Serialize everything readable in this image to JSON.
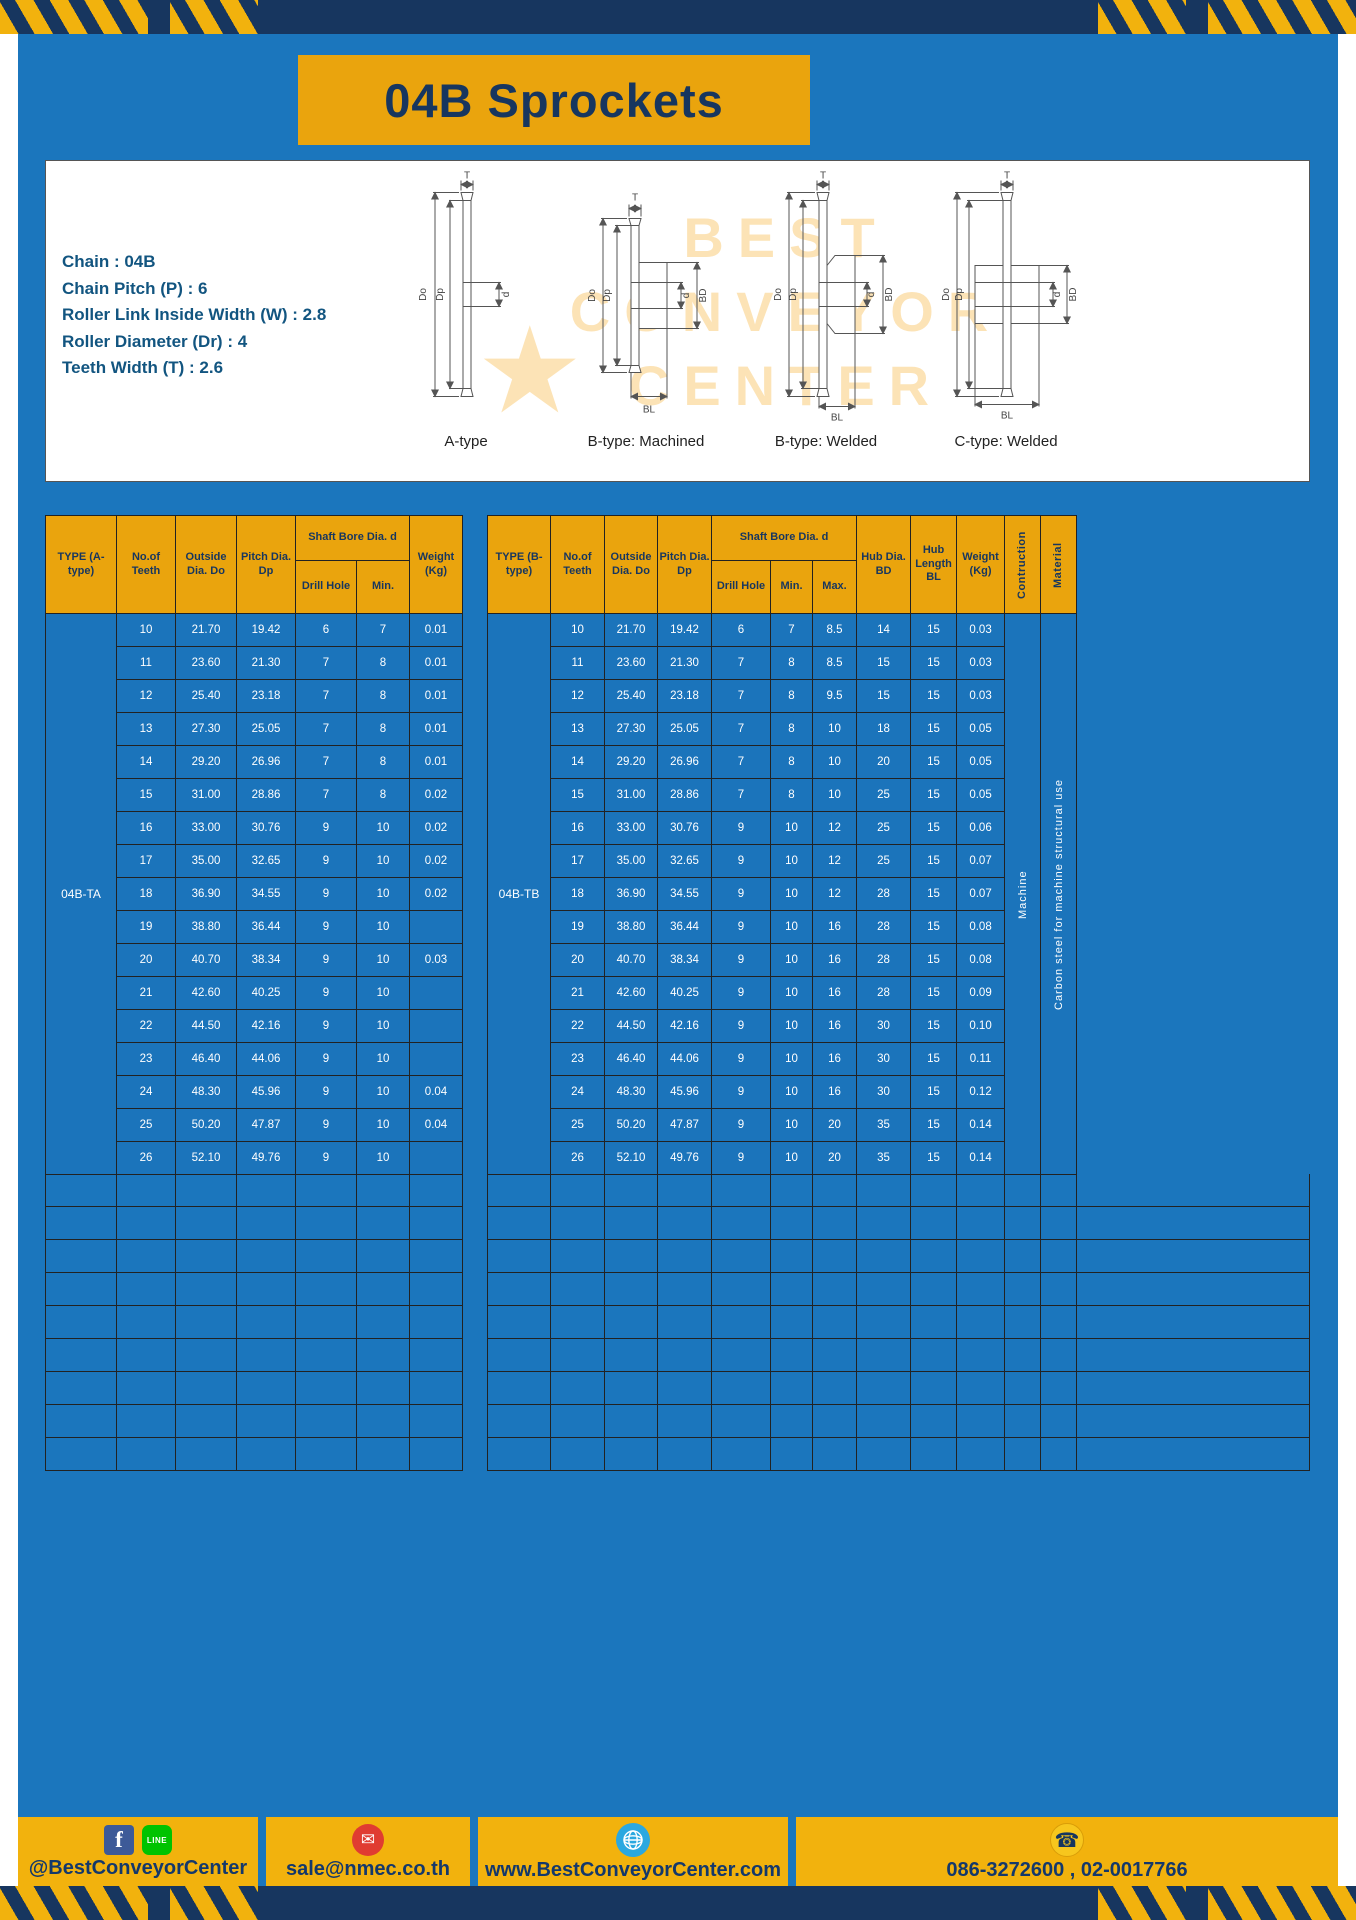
{
  "colors": {
    "page_blue": "#1b76bd",
    "navy": "#17365f",
    "accent_yellow": "#eaa40d",
    "footer_yellow": "#f2b20d"
  },
  "title": "04B Sprockets",
  "specs": {
    "lines": [
      "Chain : 04B",
      "Chain Pitch (P) : 6",
      "Roller Link Inside Width (W) : 2.8",
      "Roller Diameter (Dr) : 4",
      "Teeth Width (T) : 2.6"
    ]
  },
  "diagram": {
    "watermark_lines": [
      "BEST",
      "CONVEYOR",
      "CENTER"
    ],
    "watermark_star": "★",
    "figures": [
      {
        "caption": "A-type",
        "dims": [
          "T",
          "Do",
          "Dp",
          "d"
        ]
      },
      {
        "caption": "B-type: Machined",
        "dims": [
          "T",
          "Do",
          "Dp",
          "d",
          "BD",
          "BL"
        ]
      },
      {
        "caption": "B-type: Welded",
        "dims": [
          "T",
          "Do",
          "Dp",
          "d",
          "BD",
          "BL"
        ]
      },
      {
        "caption": "C-type: Welded",
        "dims": [
          "T",
          "Do",
          "Dp",
          "d",
          "BD",
          "BL"
        ]
      }
    ]
  },
  "table_a": {
    "type_label": "04B-TA",
    "headers": {
      "type": "TYPE (A-type)",
      "teeth": "No.of Teeth",
      "outside_dia": "Outside Dia. Do",
      "pitch_dia": "Pitch Dia. Dp",
      "shaft_bore": "Shaft Bore Dia. d",
      "drill_hole": "Drill Hole",
      "min": "Min.",
      "weight": "Weight (Kg)"
    },
    "rows": [
      [
        "10",
        "21.70",
        "19.42",
        "6",
        "7",
        "0.01"
      ],
      [
        "11",
        "23.60",
        "21.30",
        "7",
        "8",
        "0.01"
      ],
      [
        "12",
        "25.40",
        "23.18",
        "7",
        "8",
        "0.01"
      ],
      [
        "13",
        "27.30",
        "25.05",
        "7",
        "8",
        "0.01"
      ],
      [
        "14",
        "29.20",
        "26.96",
        "7",
        "8",
        "0.01"
      ],
      [
        "15",
        "31.00",
        "28.86",
        "7",
        "8",
        "0.02"
      ],
      [
        "16",
        "33.00",
        "30.76",
        "9",
        "10",
        "0.02"
      ],
      [
        "17",
        "35.00",
        "32.65",
        "9",
        "10",
        "0.02"
      ],
      [
        "18",
        "36.90",
        "34.55",
        "9",
        "10",
        "0.02"
      ],
      [
        "19",
        "38.80",
        "36.44",
        "9",
        "10",
        ""
      ],
      [
        "20",
        "40.70",
        "38.34",
        "9",
        "10",
        "0.03"
      ],
      [
        "21",
        "42.60",
        "40.25",
        "9",
        "10",
        ""
      ],
      [
        "22",
        "44.50",
        "42.16",
        "9",
        "10",
        ""
      ],
      [
        "23",
        "46.40",
        "44.06",
        "9",
        "10",
        ""
      ],
      [
        "24",
        "48.30",
        "45.96",
        "9",
        "10",
        "0.04"
      ],
      [
        "25",
        "50.20",
        "47.87",
        "9",
        "10",
        "0.04"
      ],
      [
        "26",
        "52.10",
        "49.76",
        "9",
        "10",
        ""
      ]
    ],
    "empty_row_count": 9
  },
  "table_b": {
    "type_label": "04B-TB",
    "headers": {
      "type": "TYPE (B-type)",
      "teeth": "No.of Teeth",
      "outside_dia": "Outside Dia. Do",
      "pitch_dia": "Pitch Dia. Dp",
      "shaft_bore": "Shaft Bore Dia. d",
      "drill_hole": "Drill Hole",
      "min": "Min.",
      "max": "Max.",
      "hub_dia": "Hub Dia. BD",
      "hub_length": "Hub Length BL",
      "weight": "Weight (Kg)",
      "construction": "Contruction",
      "material": "Material"
    },
    "rows": [
      [
        "10",
        "21.70",
        "19.42",
        "6",
        "7",
        "8.5",
        "14",
        "15",
        "0.03"
      ],
      [
        "11",
        "23.60",
        "21.30",
        "7",
        "8",
        "8.5",
        "15",
        "15",
        "0.03"
      ],
      [
        "12",
        "25.40",
        "23.18",
        "7",
        "8",
        "9.5",
        "15",
        "15",
        "0.03"
      ],
      [
        "13",
        "27.30",
        "25.05",
        "7",
        "8",
        "10",
        "18",
        "15",
        "0.05"
      ],
      [
        "14",
        "29.20",
        "26.96",
        "7",
        "8",
        "10",
        "20",
        "15",
        "0.05"
      ],
      [
        "15",
        "31.00",
        "28.86",
        "7",
        "8",
        "10",
        "25",
        "15",
        "0.05"
      ],
      [
        "16",
        "33.00",
        "30.76",
        "9",
        "10",
        "12",
        "25",
        "15",
        "0.06"
      ],
      [
        "17",
        "35.00",
        "32.65",
        "9",
        "10",
        "12",
        "25",
        "15",
        "0.07"
      ],
      [
        "18",
        "36.90",
        "34.55",
        "9",
        "10",
        "12",
        "28",
        "15",
        "0.07"
      ],
      [
        "19",
        "38.80",
        "36.44",
        "9",
        "10",
        "16",
        "28",
        "15",
        "0.08"
      ],
      [
        "20",
        "40.70",
        "38.34",
        "9",
        "10",
        "16",
        "28",
        "15",
        "0.08"
      ],
      [
        "21",
        "42.60",
        "40.25",
        "9",
        "10",
        "16",
        "28",
        "15",
        "0.09"
      ],
      [
        "22",
        "44.50",
        "42.16",
        "9",
        "10",
        "16",
        "30",
        "15",
        "0.10"
      ],
      [
        "23",
        "46.40",
        "44.06",
        "9",
        "10",
        "16",
        "30",
        "15",
        "0.11"
      ],
      [
        "24",
        "48.30",
        "45.96",
        "9",
        "10",
        "16",
        "30",
        "15",
        "0.12"
      ],
      [
        "25",
        "50.20",
        "47.87",
        "9",
        "10",
        "20",
        "35",
        "15",
        "0.14"
      ],
      [
        "26",
        "52.10",
        "49.76",
        "9",
        "10",
        "20",
        "35",
        "15",
        "0.14"
      ]
    ],
    "construction_value": "Machine",
    "material_value": "Carbon steel for machine structural use",
    "empty_row_count": 9
  },
  "footer": {
    "facebook_label": "f",
    "line_label": "LINE",
    "social_handle": "@BestConveyorCenter",
    "email": "sale@nmec.co.th",
    "website": "www.BestConveyorCenter.com",
    "phone_numbers": "086-3272600 , 02-0017766"
  }
}
